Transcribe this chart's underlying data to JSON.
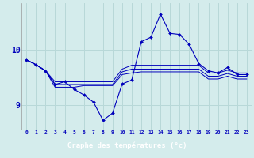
{
  "background_color": "#d4ecec",
  "grid_color": "#b8d8d8",
  "line_color": "#0000bb",
  "xlabel": "Graphe des températures (°c)",
  "xlabel_bg": "#0000aa",
  "xlabel_fg": "#ffffff",
  "yticks": [
    9,
    10
  ],
  "xlim": [
    -0.5,
    23.5
  ],
  "ylim": [
    8.55,
    10.85
  ],
  "series": {
    "line1_y": [
      9.82,
      9.73,
      9.62,
      9.42,
      9.42,
      9.42,
      9.42,
      9.42,
      9.42,
      9.42,
      9.65,
      9.72,
      9.72,
      9.72,
      9.72,
      9.72,
      9.72,
      9.72,
      9.72,
      9.58,
      9.58,
      9.63,
      9.58,
      9.58
    ],
    "line2_y": [
      9.82,
      9.73,
      9.62,
      9.37,
      9.37,
      9.37,
      9.37,
      9.37,
      9.37,
      9.37,
      9.6,
      9.65,
      9.65,
      9.65,
      9.65,
      9.65,
      9.65,
      9.65,
      9.65,
      9.52,
      9.52,
      9.57,
      9.52,
      9.52
    ],
    "line3_y": [
      9.82,
      9.73,
      9.62,
      9.32,
      9.32,
      9.32,
      9.35,
      9.35,
      9.35,
      9.35,
      9.55,
      9.58,
      9.6,
      9.6,
      9.6,
      9.6,
      9.6,
      9.6,
      9.6,
      9.47,
      9.47,
      9.52,
      9.47,
      9.47
    ],
    "zigzag_y": [
      9.82,
      9.73,
      9.62,
      9.37,
      9.42,
      9.28,
      9.18,
      9.05,
      8.72,
      8.85,
      9.38,
      9.45,
      10.15,
      10.23,
      10.65,
      10.3,
      10.28,
      10.1,
      9.75,
      9.62,
      9.58,
      9.68,
      9.55,
      9.55
    ]
  }
}
